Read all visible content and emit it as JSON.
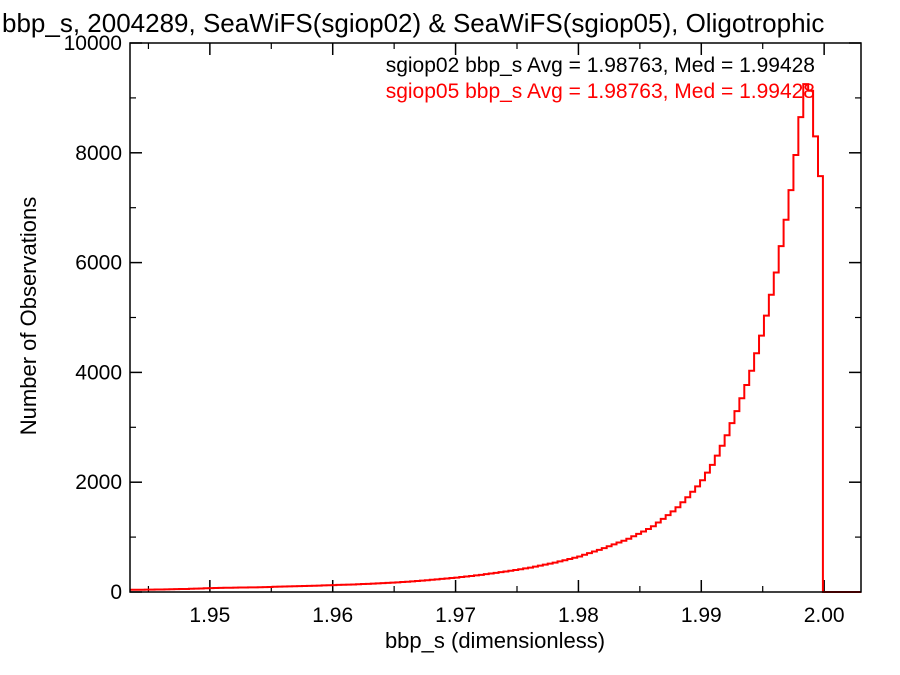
{
  "chart_data": {
    "type": "histogram",
    "title": "bbp_s, 2004289, SeaWiFS(sgiop02) & SeaWiFS(sgiop05), Oligotrophic",
    "xlabel": "bbp_s (dimensionless)",
    "ylabel": "Number of Observations",
    "xlim": [
      1.9435,
      2.003
    ],
    "ylim": [
      0,
      10000
    ],
    "xticks": [
      1.95,
      1.96,
      1.97,
      1.98,
      1.99,
      2.0
    ],
    "xtick_labels": [
      "1.95",
      "1.96",
      "1.97",
      "1.98",
      "1.99",
      "2.00"
    ],
    "yticks": [
      0,
      2000,
      4000,
      6000,
      8000,
      10000
    ],
    "ytick_labels": [
      "0",
      "2000",
      "4000",
      "6000",
      "8000",
      "10000"
    ],
    "grid": false,
    "legend_position": "top-right",
    "legend": [
      {
        "text": "sgiop02 bbp_s Avg = 1.98763, Med = 1.99428",
        "color": "#000000"
      },
      {
        "text": "sgiop05 bbp_s Avg = 1.98763, Med = 1.99428",
        "color": "#ff0000"
      }
    ],
    "series": [
      {
        "name": "sgiop05 bbp_s",
        "color": "#ff0000",
        "bin_width": 0.0004,
        "points": [
          [
            1.9435,
            40
          ],
          [
            1.946,
            45
          ],
          [
            1.948,
            55
          ],
          [
            1.95,
            70
          ],
          [
            1.952,
            80
          ],
          [
            1.954,
            85
          ],
          [
            1.956,
            100
          ],
          [
            1.958,
            110
          ],
          [
            1.96,
            125
          ],
          [
            1.962,
            140
          ],
          [
            1.964,
            160
          ],
          [
            1.966,
            185
          ],
          [
            1.968,
            220
          ],
          [
            1.97,
            260
          ],
          [
            1.972,
            310
          ],
          [
            1.974,
            370
          ],
          [
            1.976,
            440
          ],
          [
            1.978,
            530
          ],
          [
            1.98,
            640
          ],
          [
            1.982,
            790
          ],
          [
            1.984,
            960
          ],
          [
            1.986,
            1180
          ],
          [
            1.988,
            1520
          ],
          [
            1.989,
            1750
          ],
          [
            1.99,
            2000
          ],
          [
            1.991,
            2350
          ],
          [
            1.992,
            2800
          ],
          [
            1.993,
            3350
          ],
          [
            1.994,
            3950
          ],
          [
            1.995,
            4750
          ],
          [
            1.996,
            5700
          ],
          [
            1.997,
            6900
          ],
          [
            1.9975,
            7600
          ],
          [
            1.998,
            8500
          ],
          [
            1.9985,
            9250
          ],
          [
            1.999,
            9100
          ],
          [
            1.9993,
            8300
          ],
          [
            1.9996,
            9150
          ],
          [
            1.9998,
            6000
          ],
          [
            2.0,
            0
          ],
          [
            2.003,
            0
          ]
        ]
      }
    ]
  }
}
